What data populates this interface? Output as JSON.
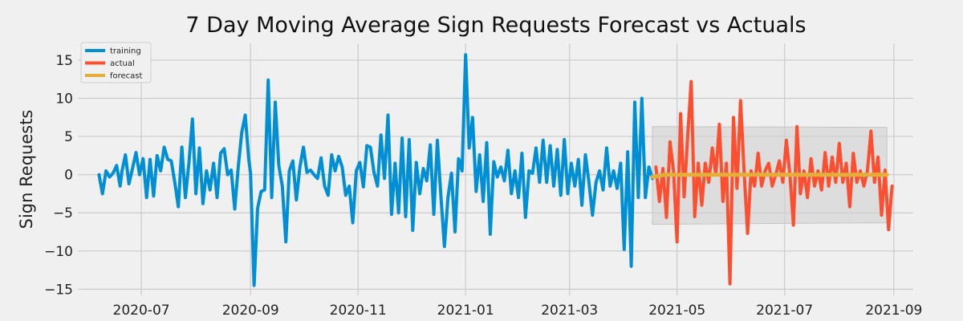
{
  "chart_data": {
    "type": "line",
    "title": "7 Day Moving Average Sign Requests Forecast vs Actuals",
    "xlabel": "",
    "ylabel": "Sign Requests",
    "xlim": [
      "2020-05-26",
      "2021-09-12"
    ],
    "ylim": [
      -15.8,
      17.2
    ],
    "grid": true,
    "legend_position": "top-left",
    "x_ticks": [
      "2020-07",
      "2020-09",
      "2020-11",
      "2021-01",
      "2021-03",
      "2021-05",
      "2021-07",
      "2021-09"
    ],
    "y_ticks": [
      -15,
      -10,
      -5,
      0,
      5,
      10,
      15
    ],
    "y_tick_labels": [
      "−15",
      "−10",
      "−5",
      "0",
      "5",
      "10",
      "15"
    ],
    "colors": {
      "training": "#008fd5",
      "actual": "#fc4f30",
      "forecast": "#e5ae38",
      "band": "#d0d0d0"
    },
    "series": [
      {
        "name": "training",
        "dates": [
          "2020-06-07",
          "2020-06-09",
          "2020-06-11",
          "2020-06-13",
          "2020-06-15",
          "2020-06-17",
          "2020-06-19",
          "2020-06-20",
          "2020-06-22",
          "2020-06-24",
          "2020-06-26",
          "2020-06-28",
          "2020-06-30",
          "2020-07-02",
          "2020-07-04",
          "2020-07-06",
          "2020-07-08",
          "2020-07-10",
          "2020-07-12",
          "2020-07-14",
          "2020-07-16",
          "2020-07-18",
          "2020-07-20",
          "2020-07-22",
          "2020-07-24",
          "2020-07-26",
          "2020-07-28",
          "2020-07-30",
          "2020-08-01",
          "2020-08-03",
          "2020-08-05",
          "2020-08-07",
          "2020-08-09",
          "2020-08-11",
          "2020-08-13",
          "2020-08-15",
          "2020-08-17",
          "2020-08-19",
          "2020-08-21",
          "2020-08-23",
          "2020-08-25",
          "2020-08-27",
          "2020-08-29",
          "2020-08-31",
          "2020-09-01",
          "2020-09-03",
          "2020-09-05",
          "2020-09-07",
          "2020-09-09",
          "2020-09-11",
          "2020-09-13",
          "2020-09-15",
          "2020-09-17",
          "2020-09-19",
          "2020-09-21",
          "2020-09-23",
          "2020-09-25",
          "2020-09-27",
          "2020-09-29",
          "2020-10-01",
          "2020-10-03",
          "2020-10-05",
          "2020-10-07",
          "2020-10-09",
          "2020-10-11",
          "2020-10-13",
          "2020-10-15",
          "2020-10-17",
          "2020-10-19",
          "2020-10-21",
          "2020-10-23",
          "2020-10-25",
          "2020-10-27",
          "2020-10-29",
          "2020-10-31",
          "2020-11-02",
          "2020-11-04",
          "2020-11-06",
          "2020-11-08",
          "2020-11-10",
          "2020-11-12",
          "2020-11-14",
          "2020-11-16",
          "2020-11-18",
          "2020-11-20",
          "2020-11-22",
          "2020-11-24",
          "2020-11-26",
          "2020-11-28",
          "2020-11-30",
          "2020-12-02",
          "2020-12-04",
          "2020-12-06",
          "2020-12-08",
          "2020-12-10",
          "2020-12-12",
          "2020-12-14",
          "2020-12-16",
          "2020-12-18",
          "2020-12-20",
          "2020-12-22",
          "2020-12-24",
          "2020-12-26",
          "2020-12-28",
          "2020-12-30",
          "2021-01-01",
          "2021-01-03",
          "2021-01-05",
          "2021-01-07",
          "2021-01-09",
          "2021-01-11",
          "2021-01-13",
          "2021-01-15",
          "2021-01-17",
          "2021-01-19",
          "2021-01-21",
          "2021-01-23",
          "2021-01-25",
          "2021-01-27",
          "2021-01-29",
          "2021-01-31",
          "2021-02-02",
          "2021-02-04",
          "2021-02-06",
          "2021-02-08",
          "2021-02-10",
          "2021-02-12",
          "2021-02-14",
          "2021-02-16",
          "2021-02-18",
          "2021-02-20",
          "2021-02-22",
          "2021-02-24",
          "2021-02-26",
          "2021-02-28",
          "2021-03-02",
          "2021-03-04",
          "2021-03-06",
          "2021-03-08",
          "2021-03-10",
          "2021-03-12",
          "2021-03-14",
          "2021-03-16",
          "2021-03-18",
          "2021-03-20",
          "2021-03-22",
          "2021-03-24",
          "2021-03-26",
          "2021-03-28",
          "2021-03-30",
          "2021-04-01",
          "2021-04-03",
          "2021-04-05",
          "2021-04-07",
          "2021-04-09",
          "2021-04-11",
          "2021-04-13",
          "2021-04-15",
          "2021-04-17"
        ],
        "values": [
          0,
          -2.5,
          0.5,
          -0.3,
          0.2,
          1.2,
          -1.5,
          0.4,
          2.6,
          -1.2,
          0.8,
          2.9,
          0,
          2.1,
          -3,
          2.0,
          -2.8,
          2.5,
          0.5,
          3.6,
          2,
          1.8,
          -1,
          -4.2,
          3.6,
          -3,
          1.5,
          7.3,
          -2.5,
          3.5,
          -3.8,
          0.5,
          -2,
          1.5,
          -3,
          2.8,
          3.4,
          0,
          0.6,
          -4.5,
          1,
          5.5,
          7.8,
          2,
          0.2,
          -14.5,
          -4.4,
          -2.2,
          -2,
          12.4,
          -3,
          9.5,
          1.2,
          -1.5,
          -8.8,
          0.5,
          1.8,
          -3.3,
          1,
          3.6,
          0.3,
          0.6,
          0,
          -0.5,
          2.2,
          -1.5,
          -2.7,
          2.6,
          0.5,
          2.4,
          1,
          -2.7,
          -1.5,
          -6.3,
          0.5,
          1.6,
          -1.6,
          3.8,
          3.6,
          0.3,
          -1.5,
          5.2,
          -0.5,
          7.8,
          -5.2,
          1.5,
          -5,
          4.8,
          -5.5,
          4.6,
          -7.3,
          1.6,
          -2.5,
          0.8,
          -0.8,
          3.9,
          -5.2,
          4.5,
          -2.8,
          -9.4,
          -3,
          0.2,
          -7.5,
          2.1,
          0.5,
          15.7,
          3.5,
          7.5,
          -2.2,
          2.6,
          -3.5,
          4.2,
          -7.8,
          1.7,
          -0.3,
          1,
          -0.8,
          3.2,
          -2.5,
          0.5,
          -3,
          2.8,
          -5.6,
          0.5,
          0.2,
          3.5,
          -1,
          4.5,
          -1,
          3.8,
          -1.5,
          3.3,
          -2.7,
          4.6,
          -2.5,
          1.5,
          -1.5,
          2,
          -4,
          2.6,
          -1,
          -5.3,
          -1,
          0.5,
          -2,
          3.5,
          -1.5,
          0.5,
          -1.8,
          1.5,
          -9.8,
          3,
          -12,
          9.5,
          -3,
          10,
          -3,
          1,
          -0.5
        ]
      },
      {
        "name": "actual",
        "dates": [
          "2021-04-19",
          "2021-04-21",
          "2021-04-23",
          "2021-04-25",
          "2021-04-27",
          "2021-04-29",
          "2021-05-01",
          "2021-05-03",
          "2021-05-05",
          "2021-05-07",
          "2021-05-09",
          "2021-05-11",
          "2021-05-13",
          "2021-05-15",
          "2021-05-17",
          "2021-05-19",
          "2021-05-21",
          "2021-05-23",
          "2021-05-25",
          "2021-05-27",
          "2021-05-29",
          "2021-05-31",
          "2021-06-02",
          "2021-06-04",
          "2021-06-06",
          "2021-06-08",
          "2021-06-10",
          "2021-06-12",
          "2021-06-14",
          "2021-06-16",
          "2021-06-18",
          "2021-06-20",
          "2021-06-22",
          "2021-06-24",
          "2021-06-26",
          "2021-06-28",
          "2021-06-30",
          "2021-07-02",
          "2021-07-04",
          "2021-07-06",
          "2021-07-08",
          "2021-07-10",
          "2021-07-12",
          "2021-07-14",
          "2021-07-16",
          "2021-07-18",
          "2021-07-20",
          "2021-07-22",
          "2021-07-24",
          "2021-07-26",
          "2021-07-28",
          "2021-07-30",
          "2021-08-01",
          "2021-08-03",
          "2021-08-05",
          "2021-08-07",
          "2021-08-09",
          "2021-08-11",
          "2021-08-13",
          "2021-08-15",
          "2021-08-17",
          "2021-08-19",
          "2021-08-21",
          "2021-08-23",
          "2021-08-25",
          "2021-08-27",
          "2021-08-29",
          "2021-08-31"
        ],
        "values": [
          1,
          -3.5,
          0.8,
          -5.6,
          4.3,
          0.5,
          -8.8,
          8,
          -2.9,
          5,
          12.2,
          -5.5,
          1.5,
          -4,
          1.5,
          -1,
          3.5,
          0,
          6.6,
          -3.5,
          1.5,
          -14.3,
          7.5,
          -1.8,
          9.7,
          0.5,
          -7.7,
          0.5,
          -1.5,
          2.8,
          -1.5,
          0.5,
          1.5,
          -1.5,
          0,
          1.8,
          -1,
          4.5,
          0,
          -6.6,
          6.3,
          -2.5,
          0.5,
          -3,
          2.1,
          -1.5,
          0.5,
          -2,
          2.9,
          -1.5,
          2.3,
          -1,
          4.1,
          -1,
          1.5,
          -4.2,
          2.8,
          -1,
          0.5,
          -1.5,
          0.5,
          5.7,
          -1,
          2.3,
          -5.3,
          0.6,
          -7.2,
          -1.5
        ]
      },
      {
        "name": "forecast",
        "dates": [
          "2021-04-17",
          "2021-04-24",
          "2021-05-01",
          "2021-05-08",
          "2021-05-15",
          "2021-05-22",
          "2021-05-29",
          "2021-06-05",
          "2021-06-12",
          "2021-06-19",
          "2021-06-26",
          "2021-07-03",
          "2021-07-10",
          "2021-07-17",
          "2021-07-24",
          "2021-07-31",
          "2021-08-07",
          "2021-08-14",
          "2021-08-21",
          "2021-08-28"
        ],
        "values": [
          -0.3,
          0,
          0,
          0,
          0,
          0,
          0,
          0,
          0,
          0,
          0,
          0,
          0,
          0,
          0,
          0,
          0,
          0,
          0,
          0
        ]
      }
    ],
    "confidence_band": {
      "dates": [
        "2021-04-17",
        "2021-08-28"
      ],
      "upper": [
        6.3,
        6.2
      ],
      "lower": [
        -6.5,
        -6.3
      ]
    }
  }
}
